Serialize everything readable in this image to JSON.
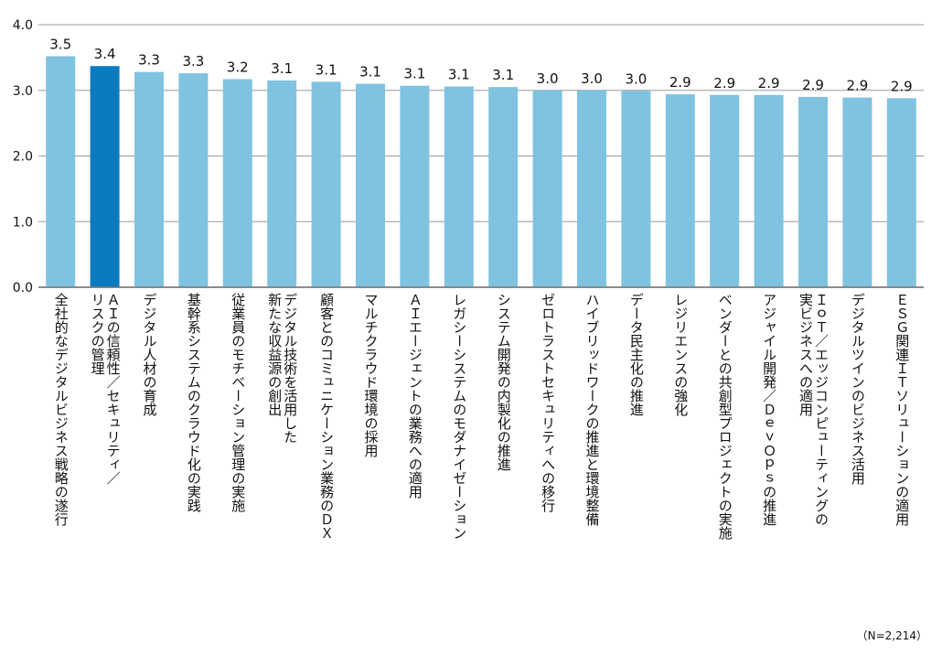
{
  "chart_data": {
    "type": "bar",
    "title": "",
    "xlabel": "",
    "ylabel": "",
    "ylim": [
      0,
      4.0
    ],
    "yticks": [
      "0.0",
      "1.0",
      "2.0",
      "3.0",
      "4.0"
    ],
    "grid": true,
    "colors": {
      "bar": "#7fc3e0",
      "highlight": "#0a7bbf",
      "grid": "#9a9a9a"
    },
    "highlight_index": 1,
    "categories": [
      "全社的なデジタルビジネス戦略の遂行",
      "ＡＩの信頼性／セキュリティ／\nリスクの管理",
      "デジタル人材の育成",
      "基幹系システムのクラウド化の実践",
      "従業員のモチベーション管理の実施",
      "デジタル技術を活用した\n新たな収益源の創出",
      "顧客とのコミュニケーション業務のＤＸ",
      "マルチクラウド環境の採用",
      "ＡＩエージェントの業務への適用",
      "レガシーシステムのモダナイゼーション",
      "システム開発の内製化の推進",
      "ゼロトラストセキュリティへの移行",
      "ハイブリッドワークの推進と環境整備",
      "データ民主化の推進",
      "レジリエンスの強化",
      "ベンダーとの共創型プロジェクトの実施",
      "アジャイル開発／ＤｅｖＯｐｓの推進",
      "ＩｏＴ／エッジコンピューティングの\n実ビジネスへの適用",
      "デジタルツインのビジネス活用",
      "ＥＳＧ関連ＩＴソリューションの適用"
    ],
    "values": [
      3.52,
      3.37,
      3.28,
      3.26,
      3.17,
      3.15,
      3.13,
      3.1,
      3.07,
      3.06,
      3.05,
      3.0,
      3.0,
      2.99,
      2.94,
      2.93,
      2.93,
      2.9,
      2.89,
      2.88
    ],
    "data_labels": [
      "3.5",
      "3.4",
      "3.3",
      "3.3",
      "3.2",
      "3.1",
      "3.1",
      "3.1",
      "3.1",
      "3.1",
      "3.1",
      "3.0",
      "3.0",
      "3.0",
      "2.9",
      "2.9",
      "2.9",
      "2.9",
      "2.9",
      "2.9"
    ],
    "note": "（N=2,214）"
  }
}
